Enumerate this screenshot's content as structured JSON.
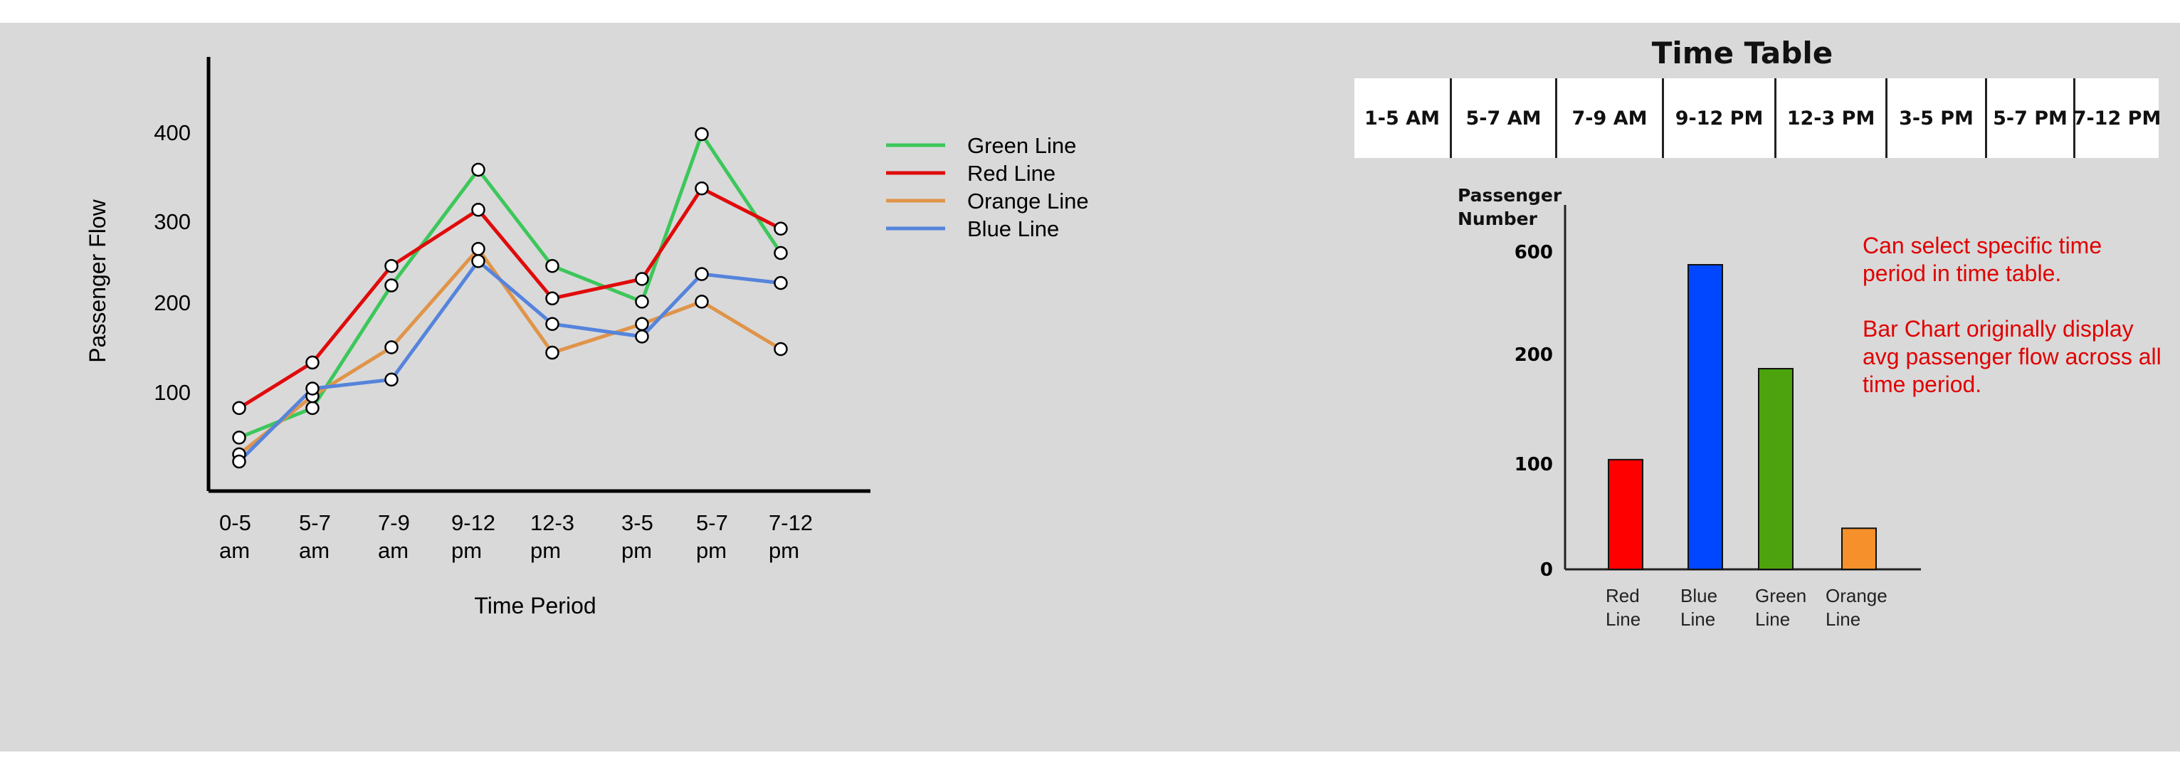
{
  "line_chart": {
    "ylabel": "Passenger Flow",
    "xlabel": "Time Period",
    "y_ticks": [
      "400",
      "300",
      "200",
      "100"
    ],
    "x_ticks": [
      [
        "0-5",
        "am"
      ],
      [
        "5-7",
        "am"
      ],
      [
        "7-9",
        "am"
      ],
      [
        "9-12",
        "pm"
      ],
      [
        "12-3",
        "pm"
      ],
      [
        "3-5",
        "pm"
      ],
      [
        "5-7",
        "pm"
      ],
      [
        "7-12",
        "pm"
      ]
    ],
    "legend": [
      "Green Line",
      "Red Line",
      "Orange Line",
      "Blue Line"
    ]
  },
  "time_table": {
    "title": "Time Table",
    "periods": [
      "1-5 AM",
      "5-7 AM",
      "7-9 AM",
      "9-12 PM",
      "12-3 PM",
      "3-5 PM",
      "5-7 PM",
      "7-12 PM"
    ]
  },
  "bar_chart": {
    "ylabel": "Passenger Number",
    "y_ticks": [
      "600",
      "200",
      "100",
      "0"
    ],
    "categories": [
      [
        "Red",
        "Line"
      ],
      [
        "Blue",
        "Line"
      ],
      [
        "Green",
        "Line"
      ],
      [
        "Orange",
        "Line"
      ]
    ]
  },
  "notes": [
    "Can select specific time period in time table.",
    "Bar Chart originally display avg passenger flow across all time period."
  ],
  "chart_data": [
    {
      "type": "line",
      "title": "",
      "xlabel": "Time Period",
      "ylabel": "Passenger Flow",
      "categories": [
        "0-5 am",
        "5-7 am",
        "7-9 am",
        "9-12 pm",
        "12-3 pm",
        "3-5 pm",
        "5-7 pm",
        "7-12 pm"
      ],
      "y_ticks": [
        100,
        200,
        300,
        400
      ],
      "grid": false,
      "legend_position": "right",
      "series": [
        {
          "name": "Green Line",
          "color": "#3cc75a",
          "values": [
            43,
            80,
            221,
            358,
            245,
            201,
            398,
            261
          ]
        },
        {
          "name": "Red Line",
          "color": "#e00b0b",
          "values": [
            80,
            133,
            245,
            313,
            205,
            229,
            337,
            291
          ]
        },
        {
          "name": "Orange Line",
          "color": "#e0944a",
          "values": [
            22,
            95,
            150,
            266,
            144,
            176,
            201,
            148
          ]
        },
        {
          "name": "Blue Line",
          "color": "#5584dc",
          "values": [
            13,
            104,
            114,
            251,
            176,
            162,
            235,
            224
          ]
        }
      ]
    },
    {
      "type": "bar",
      "title": "",
      "xlabel": "",
      "ylabel": "Passenger Number",
      "categories": [
        "Red Line",
        "Blue Line",
        "Green Line",
        "Orange Line"
      ],
      "y_ticks": [
        0,
        100,
        200,
        600
      ],
      "values": [
        104,
        550,
        187,
        39
      ],
      "colors": [
        "#ff0000",
        "#0047ff",
        "#4ca30d",
        "#f5902a"
      ]
    }
  ]
}
